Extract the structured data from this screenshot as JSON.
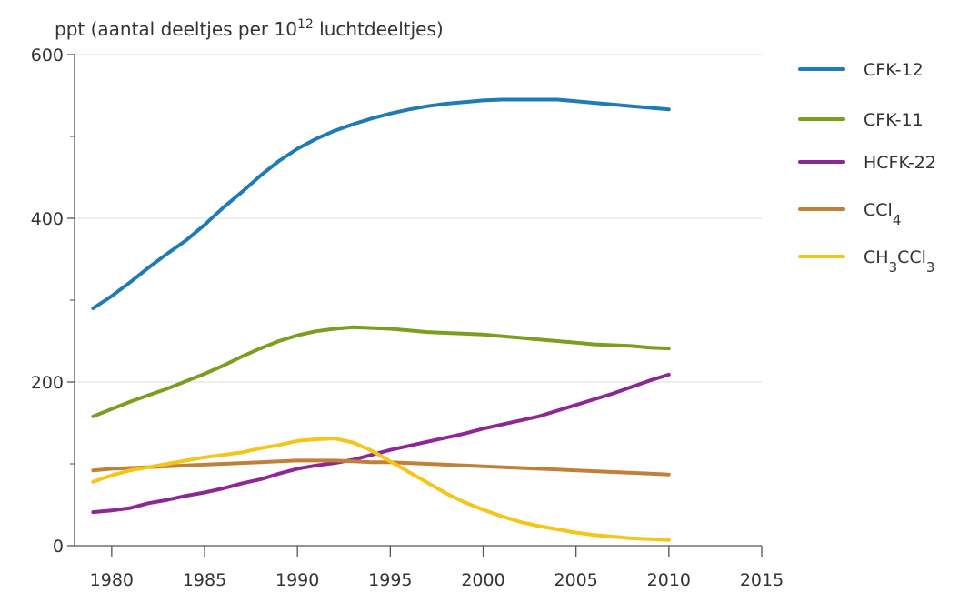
{
  "chart_data": {
    "type": "line",
    "ylabel": {
      "main": "ppt (aantal deeltjes per 10",
      "sup": "12",
      "rest": " luchtdeeltjes)"
    },
    "xlim": [
      1978,
      2015
    ],
    "ylim": [
      0,
      600
    ],
    "xticks": [
      1980,
      1985,
      1990,
      1995,
      2000,
      2005,
      2010,
      2015
    ],
    "yticks_major": [
      0,
      200,
      400,
      600
    ],
    "yticks_minor": [
      100,
      300,
      500
    ],
    "grid": "horizontal",
    "legend_position": "right",
    "series": [
      {
        "key": "cfk12",
        "name": "CFK-12",
        "color": "#1f7bb6",
        "points": [
          [
            1979,
            290
          ],
          [
            1980,
            305
          ],
          [
            1981,
            322
          ],
          [
            1982,
            340
          ],
          [
            1983,
            357
          ],
          [
            1984,
            373
          ],
          [
            1985,
            392
          ],
          [
            1986,
            413
          ],
          [
            1987,
            432
          ],
          [
            1988,
            452
          ],
          [
            1989,
            470
          ],
          [
            1990,
            485
          ],
          [
            1991,
            497
          ],
          [
            1992,
            507
          ],
          [
            1993,
            515
          ],
          [
            1994,
            522
          ],
          [
            1995,
            528
          ],
          [
            1996,
            533
          ],
          [
            1997,
            537
          ],
          [
            1998,
            540
          ],
          [
            1999,
            542
          ],
          [
            2000,
            544
          ],
          [
            2001,
            545
          ],
          [
            2002,
            545
          ],
          [
            2003,
            545
          ],
          [
            2004,
            545
          ],
          [
            2005,
            543
          ],
          [
            2006,
            541
          ],
          [
            2007,
            539
          ],
          [
            2008,
            537
          ],
          [
            2009,
            535
          ],
          [
            2010,
            533
          ]
        ]
      },
      {
        "key": "cfk11",
        "name": "CFK-11",
        "color": "#7a9e1e",
        "points": [
          [
            1979,
            158
          ],
          [
            1980,
            167
          ],
          [
            1981,
            176
          ],
          [
            1982,
            184
          ],
          [
            1983,
            192
          ],
          [
            1984,
            201
          ],
          [
            1985,
            210
          ],
          [
            1986,
            220
          ],
          [
            1987,
            231
          ],
          [
            1988,
            241
          ],
          [
            1989,
            250
          ],
          [
            1990,
            257
          ],
          [
            1991,
            262
          ],
          [
            1992,
            265
          ],
          [
            1993,
            267
          ],
          [
            1994,
            266
          ],
          [
            1995,
            265
          ],
          [
            1996,
            263
          ],
          [
            1997,
            261
          ],
          [
            1998,
            260
          ],
          [
            1999,
            259
          ],
          [
            2000,
            258
          ],
          [
            2001,
            256
          ],
          [
            2002,
            254
          ],
          [
            2003,
            252
          ],
          [
            2004,
            250
          ],
          [
            2005,
            248
          ],
          [
            2006,
            246
          ],
          [
            2007,
            245
          ],
          [
            2008,
            244
          ],
          [
            2009,
            242
          ],
          [
            2010,
            241
          ]
        ]
      },
      {
        "key": "hcfk22",
        "name": "HCFK-22",
        "color": "#8e2796",
        "points": [
          [
            1979,
            41
          ],
          [
            1980,
            43
          ],
          [
            1981,
            46
          ],
          [
            1982,
            52
          ],
          [
            1983,
            56
          ],
          [
            1984,
            61
          ],
          [
            1985,
            65
          ],
          [
            1986,
            70
          ],
          [
            1987,
            76
          ],
          [
            1988,
            81
          ],
          [
            1989,
            88
          ],
          [
            1990,
            94
          ],
          [
            1991,
            98
          ],
          [
            1992,
            101
          ],
          [
            1993,
            105
          ],
          [
            1994,
            111
          ],
          [
            1995,
            117
          ],
          [
            1996,
            122
          ],
          [
            1997,
            127
          ],
          [
            1998,
            132
          ],
          [
            1999,
            137
          ],
          [
            2000,
            143
          ],
          [
            2001,
            148
          ],
          [
            2002,
            153
          ],
          [
            2003,
            158
          ],
          [
            2004,
            165
          ],
          [
            2005,
            172
          ],
          [
            2006,
            179
          ],
          [
            2007,
            186
          ],
          [
            2008,
            194
          ],
          [
            2009,
            202
          ],
          [
            2010,
            209
          ]
        ]
      },
      {
        "key": "ccl4",
        "name": "CCl",
        "name_sub": "4",
        "color": "#c1803a",
        "points": [
          [
            1979,
            92
          ],
          [
            1980,
            94
          ],
          [
            1981,
            95
          ],
          [
            1982,
            96
          ],
          [
            1983,
            97
          ],
          [
            1984,
            98
          ],
          [
            1985,
            99
          ],
          [
            1986,
            100
          ],
          [
            1987,
            101
          ],
          [
            1988,
            102
          ],
          [
            1989,
            103
          ],
          [
            1990,
            104
          ],
          [
            1991,
            104
          ],
          [
            1992,
            104
          ],
          [
            1993,
            103
          ],
          [
            1994,
            102
          ],
          [
            1995,
            102
          ],
          [
            1996,
            101
          ],
          [
            1997,
            100
          ],
          [
            1998,
            99
          ],
          [
            1999,
            98
          ],
          [
            2000,
            97
          ],
          [
            2001,
            96
          ],
          [
            2002,
            95
          ],
          [
            2003,
            94
          ],
          [
            2004,
            93
          ],
          [
            2005,
            92
          ],
          [
            2006,
            91
          ],
          [
            2007,
            90
          ],
          [
            2008,
            89
          ],
          [
            2009,
            88
          ],
          [
            2010,
            87
          ]
        ]
      },
      {
        "key": "ch3ccl3",
        "name": "CH",
        "name_sub": "3",
        "name_mid": "CCl",
        "name_sub2": "3",
        "color": "#f5c518",
        "points": [
          [
            1979,
            78
          ],
          [
            1980,
            86
          ],
          [
            1981,
            92
          ],
          [
            1982,
            96
          ],
          [
            1983,
            100
          ],
          [
            1984,
            104
          ],
          [
            1985,
            108
          ],
          [
            1986,
            111
          ],
          [
            1987,
            114
          ],
          [
            1988,
            119
          ],
          [
            1989,
            123
          ],
          [
            1990,
            128
          ],
          [
            1991,
            130
          ],
          [
            1992,
            131
          ],
          [
            1993,
            126
          ],
          [
            1994,
            116
          ],
          [
            1995,
            103
          ],
          [
            1996,
            90
          ],
          [
            1997,
            77
          ],
          [
            1998,
            64
          ],
          [
            1999,
            53
          ],
          [
            2000,
            44
          ],
          [
            2001,
            36
          ],
          [
            2002,
            29
          ],
          [
            2003,
            24
          ],
          [
            2004,
            20
          ],
          [
            2005,
            16
          ],
          [
            2006,
            13
          ],
          [
            2007,
            11
          ],
          [
            2008,
            9
          ],
          [
            2009,
            8
          ],
          [
            2010,
            7
          ]
        ]
      }
    ]
  }
}
